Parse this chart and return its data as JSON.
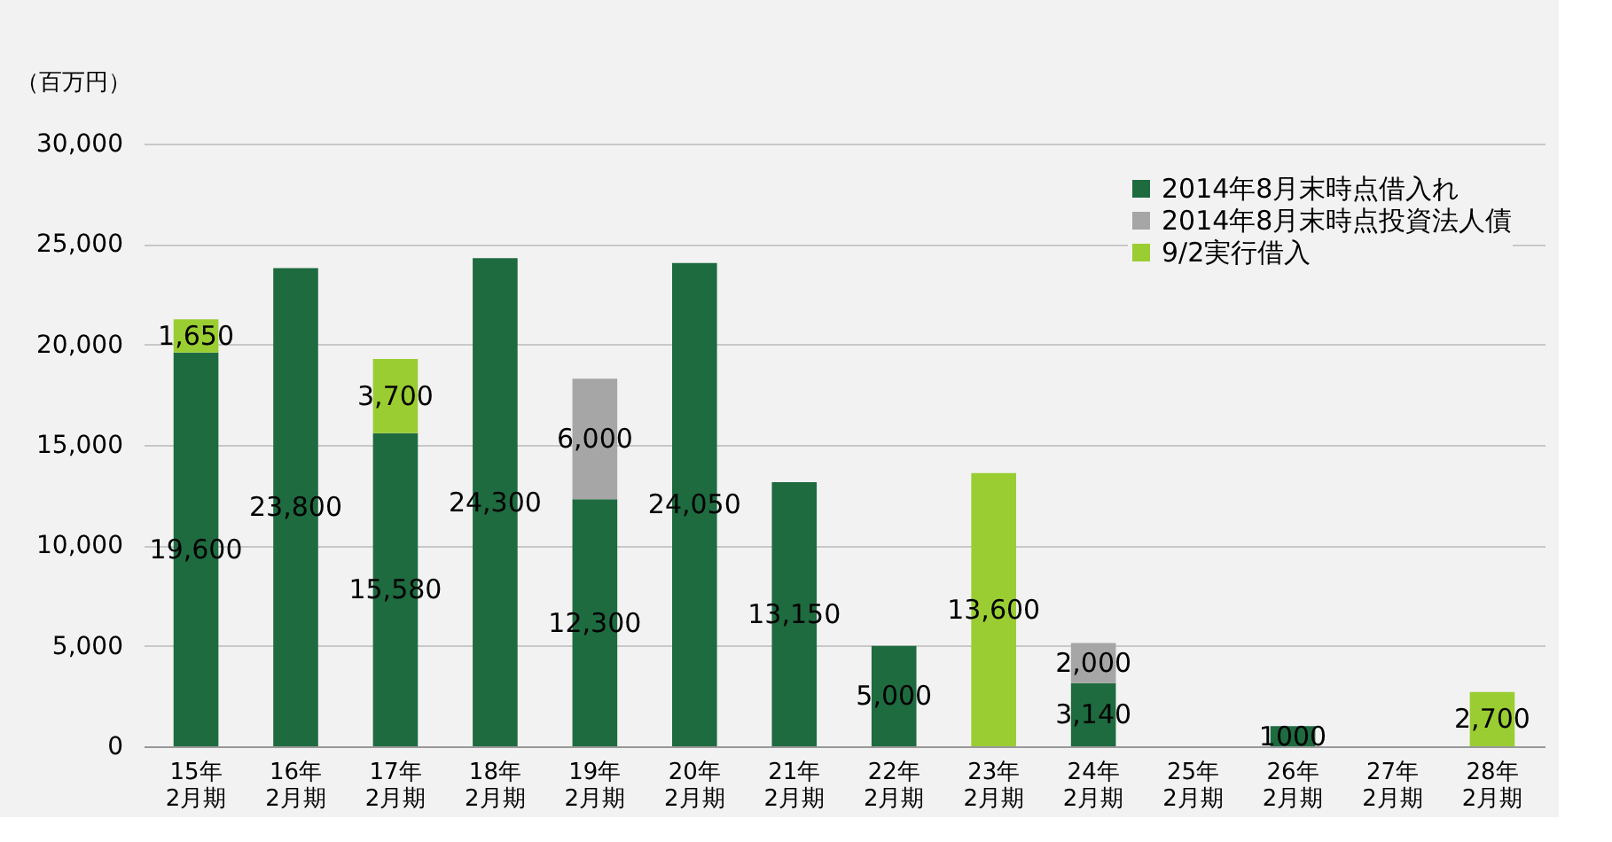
{
  "chart_data": {
    "type": "bar",
    "stacked": true,
    "ylabel": "（百万円）",
    "categories": [
      "15年\n2月期",
      "16年\n2月期",
      "17年\n2月期",
      "18年\n2月期",
      "19年\n2月期",
      "20年\n2月期",
      "21年\n2月期",
      "22年\n2月期",
      "23年\n2月期",
      "24年\n2月期",
      "25年\n2月期",
      "26年\n2月期",
      "27年\n2月期",
      "28年\n2月期"
    ],
    "series": [
      {
        "name": "2014年8月末時点借入れ",
        "color": "#1e6b40",
        "values": [
          19600,
          23800,
          15580,
          24300,
          12300,
          24050,
          13150,
          5000,
          null,
          3140,
          null,
          1000,
          null,
          null
        ],
        "value_labels": [
          "19,600",
          "23,800",
          "15,580",
          "24,300",
          "12,300",
          "24,050",
          "13,150",
          "5,000",
          null,
          "3,140",
          null,
          "1000",
          null,
          null
        ]
      },
      {
        "name": "2014年8月末時点投資法人債",
        "color": "#a6a6a6",
        "values": [
          null,
          null,
          null,
          null,
          6000,
          null,
          null,
          null,
          null,
          2000,
          null,
          null,
          null,
          null
        ],
        "value_labels": [
          null,
          null,
          null,
          null,
          "6,000",
          null,
          null,
          null,
          null,
          "2,000",
          null,
          null,
          null,
          null
        ]
      },
      {
        "name": "9/2実行借入",
        "color": "#9acd32",
        "values": [
          1650,
          null,
          3700,
          null,
          null,
          null,
          null,
          null,
          13600,
          null,
          null,
          null,
          null,
          2700
        ],
        "value_labels": [
          "1,650",
          null,
          "3,700",
          null,
          null,
          null,
          null,
          null,
          "13,600",
          null,
          null,
          null,
          null,
          "2,700"
        ]
      }
    ],
    "ylim": [
      0,
      30000
    ],
    "yticks": [
      {
        "value": 0,
        "label": "0"
      },
      {
        "value": 5000,
        "label": "5,000"
      },
      {
        "value": 10000,
        "label": "10,000"
      },
      {
        "value": 15000,
        "label": "15,000"
      },
      {
        "value": 20000,
        "label": "20,000"
      },
      {
        "value": 25000,
        "label": "25,000"
      },
      {
        "value": 30000,
        "label": "30,000"
      }
    ],
    "grid": "y",
    "legend": "top right"
  }
}
